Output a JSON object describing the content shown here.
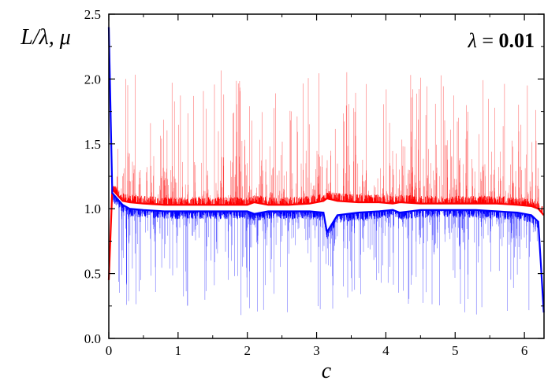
{
  "chart_data": {
    "type": "line",
    "title": "",
    "xlabel": "c",
    "ylabel": "L/λ, μ",
    "annotation": {
      "symbol": "λ",
      "equals": " = ",
      "value": "0.01"
    },
    "xlim": [
      0,
      6.2832
    ],
    "ylim": [
      0.0,
      2.5
    ],
    "x_ticks": [
      0,
      1,
      2,
      3,
      4,
      5,
      6
    ],
    "x_tick_labels": [
      "0",
      "1",
      "2",
      "3",
      "4",
      "5",
      "6"
    ],
    "y_ticks": [
      0.0,
      0.5,
      1.0,
      1.5,
      2.0,
      2.5
    ],
    "y_tick_labels": [
      "0.0",
      "0.5",
      "1.0",
      "1.5",
      "2.0",
      "2.5"
    ],
    "grid": false,
    "series": [
      {
        "color": "#ff0000",
        "x": [
          0.0,
          0.05,
          0.1,
          0.2,
          0.3,
          0.5,
          0.8,
          1.0,
          1.3,
          1.5,
          1.8,
          2.0,
          2.1,
          2.3,
          2.6,
          2.9,
          3.1,
          3.15,
          3.3,
          3.6,
          3.9,
          4.1,
          4.2,
          4.5,
          4.8,
          5.0,
          5.3,
          5.6,
          5.9,
          6.1,
          6.2,
          6.28
        ],
        "baseline": [
          0.45,
          1.15,
          1.12,
          1.06,
          1.05,
          1.04,
          1.03,
          1.03,
          1.03,
          1.03,
          1.03,
          1.03,
          1.05,
          1.03,
          1.03,
          1.04,
          1.06,
          1.08,
          1.06,
          1.05,
          1.05,
          1.04,
          1.05,
          1.04,
          1.04,
          1.04,
          1.04,
          1.04,
          1.03,
          1.02,
          1.0,
          0.95
        ],
        "peak_max": 2.08
      },
      {
        "color": "#0000ff",
        "x": [
          0.0,
          0.05,
          0.1,
          0.2,
          0.3,
          0.5,
          0.8,
          1.0,
          1.3,
          1.5,
          1.8,
          2.0,
          2.1,
          2.3,
          2.6,
          2.9,
          3.1,
          3.15,
          3.3,
          3.6,
          3.9,
          4.1,
          4.2,
          4.5,
          4.8,
          5.0,
          5.3,
          5.6,
          5.9,
          6.1,
          6.2,
          6.28
        ],
        "baseline": [
          2.4,
          1.12,
          1.09,
          1.03,
          1.0,
          0.99,
          0.98,
          0.98,
          0.98,
          0.98,
          0.98,
          0.98,
          0.96,
          0.98,
          0.98,
          0.98,
          0.97,
          0.82,
          0.95,
          0.97,
          0.98,
          0.99,
          0.97,
          0.99,
          0.99,
          0.99,
          0.99,
          0.98,
          0.97,
          0.95,
          0.9,
          0.2
        ],
        "trough_min": 0.18
      }
    ]
  }
}
